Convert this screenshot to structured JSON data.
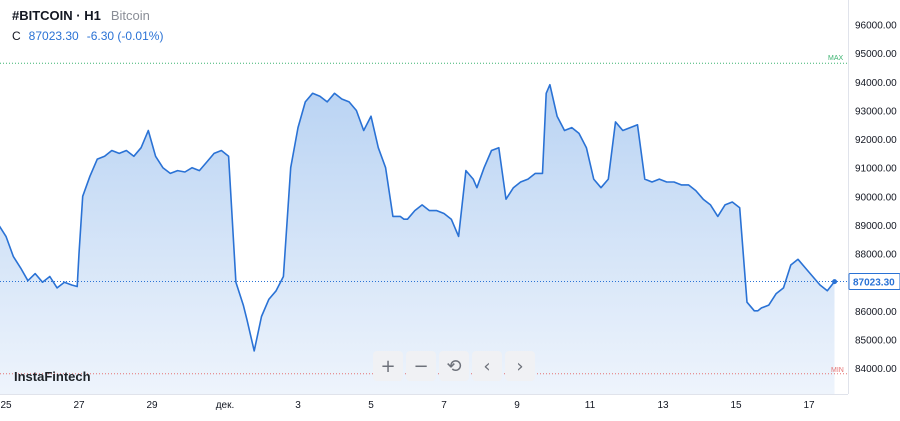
{
  "header": {
    "symbol": "#BITCOIN · H1",
    "description": "Bitcoin",
    "close_label": "C",
    "close_value": "87023.30",
    "change": "-6.30 (-0.01%)"
  },
  "brand": "InstaFintech",
  "toolbar": {
    "zoom_in": "+",
    "zoom_out": "−",
    "reset": "⟲",
    "scroll_left": "‹",
    "scroll_right": "›"
  },
  "colors": {
    "line": "#2a72d5",
    "fill_top": "#b9d3f3",
    "fill_bottom": "#eef4fc",
    "max_line": "#3cb371",
    "min_line": "#e57373",
    "last_price_line": "#2a72d5"
  },
  "chart_data": {
    "type": "area",
    "title": "",
    "xlabel": "",
    "ylabel": "",
    "ylim": [
      83500,
      96500
    ],
    "xlim": [
      0,
      23.5
    ],
    "grid": false,
    "y_ticks": [
      "84000.00",
      "85000.00",
      "86000.00",
      "88000.00",
      "89000.00",
      "90000.00",
      "91000.00",
      "92000.00",
      "93000.00",
      "94000.00",
      "95000.00",
      "96000.00"
    ],
    "x_ticks": [
      {
        "x": 0,
        "label": "25"
      },
      {
        "x": 2,
        "label": "27"
      },
      {
        "x": 4,
        "label": "29"
      },
      {
        "x": 6,
        "label": "дек."
      },
      {
        "x": 8,
        "label": "3"
      },
      {
        "x": 10,
        "label": "5"
      },
      {
        "x": 12,
        "label": "7"
      },
      {
        "x": 14,
        "label": "9"
      },
      {
        "x": 16,
        "label": "11"
      },
      {
        "x": 18,
        "label": "13"
      },
      {
        "x": 20,
        "label": "15"
      },
      {
        "x": 22,
        "label": "17"
      }
    ],
    "max_line": {
      "value": 94650,
      "label": "MAX"
    },
    "min_line": {
      "value": 83800,
      "label": "MIN"
    },
    "last_price": {
      "value": 87023.3,
      "label": "87023.30"
    },
    "series": [
      {
        "x": [
          -0.2,
          0.0,
          0.2,
          0.4,
          0.6,
          0.8,
          1.0,
          1.2,
          1.4,
          1.6,
          1.8,
          1.95,
          2.0,
          2.1,
          2.3,
          2.5,
          2.7,
          2.9,
          3.1,
          3.3,
          3.5,
          3.7,
          3.9,
          4.1,
          4.3,
          4.5,
          4.7,
          4.9,
          5.1,
          5.3,
          5.5,
          5.7,
          5.9,
          6.1,
          6.3,
          6.5,
          6.6,
          6.8,
          7.0,
          7.2,
          7.4,
          7.6,
          7.8,
          8.0,
          8.2,
          8.4,
          8.6,
          8.8,
          9.0,
          9.2,
          9.4,
          9.6,
          9.8,
          10.0,
          10.2,
          10.4,
          10.6,
          10.8,
          10.9,
          11.0,
          11.2,
          11.4,
          11.6,
          11.8,
          12.0,
          12.2,
          12.4,
          12.6,
          12.8,
          12.9,
          13.1,
          13.3,
          13.5,
          13.7,
          13.9,
          14.1,
          14.3,
          14.5,
          14.7,
          14.8,
          14.9,
          15.1,
          15.3,
          15.5,
          15.7,
          15.9,
          16.1,
          16.3,
          16.5,
          16.7,
          16.9,
          17.1,
          17.3,
          17.5,
          17.7,
          17.9,
          18.1,
          18.3,
          18.5,
          18.7,
          18.9,
          19.1,
          19.3,
          19.5,
          19.7,
          19.9,
          20.1,
          20.3,
          20.5,
          20.6,
          20.7,
          20.9,
          21.1,
          21.3,
          21.5,
          21.7,
          21.9,
          22.1,
          22.3,
          22.5,
          22.7
        ],
        "values": [
          89000,
          88600,
          87900,
          87500,
          87050,
          87300,
          87000,
          87200,
          86800,
          87000,
          86900,
          86850,
          88000,
          90000,
          90700,
          91300,
          91400,
          91600,
          91500,
          91600,
          91400,
          91700,
          92300,
          91400,
          91000,
          90800,
          90900,
          90850,
          91000,
          90900,
          91200,
          91500,
          91600,
          91400,
          87000,
          86200,
          85700,
          84600,
          85800,
          86400,
          86700,
          87200,
          91000,
          92400,
          93300,
          93600,
          93500,
          93300,
          93600,
          93400,
          93300,
          93000,
          92300,
          92800,
          91700,
          91000,
          89300,
          89300,
          89200,
          89200,
          89500,
          89700,
          89500,
          89500,
          89400,
          89200,
          88600,
          90900,
          90600,
          90300,
          91000,
          91600,
          91700,
          89900,
          90300,
          90500,
          90600,
          90800,
          90800,
          93600,
          93900,
          92800,
          92300,
          92400,
          92200,
          91700,
          90600,
          90300,
          90600,
          92600,
          92300,
          92400,
          92500,
          90600,
          90500,
          90600,
          90500,
          90500,
          90400,
          90400,
          90200,
          89900,
          89700,
          89300,
          89700,
          89800,
          89600,
          86300,
          86000,
          86000,
          86100,
          86200,
          86600,
          86800,
          87600,
          87800,
          87500,
          87200,
          86900,
          86700,
          87020
        ]
      }
    ]
  }
}
